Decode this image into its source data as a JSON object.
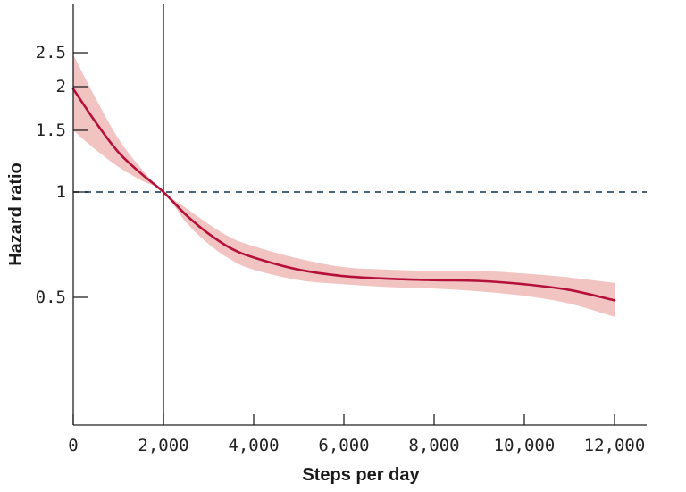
{
  "chart_data": {
    "type": "line",
    "title": "",
    "xlabel": "Steps per day",
    "ylabel": "Hazard ratio",
    "y_scale": "log",
    "xlim": [
      0,
      12600
    ],
    "ylim": [
      0.24,
      3.6
    ],
    "x_ticks": [
      0,
      2000,
      4000,
      6000,
      8000,
      10000,
      12000
    ],
    "x_tick_labels": [
      "0",
      "2,000",
      "4,000",
      "6,000",
      "8,000",
      "10,000",
      "12,000"
    ],
    "y_ticks": [
      0.5,
      1,
      1.5,
      2,
      2.5
    ],
    "y_tick_labels": [
      "0.5",
      "1",
      "1.5",
      "2",
      "2.5"
    ],
    "reference_lines": [
      {
        "axis": "y",
        "value": 1,
        "style": "dashed",
        "color": "#4a6478"
      },
      {
        "axis": "x",
        "value": 2000,
        "style": "solid",
        "color": "#1a1a1a"
      }
    ],
    "series": [
      {
        "x": [
          0,
          500,
          1000,
          1500,
          2000,
          2500,
          3000,
          3500,
          4000,
          5000,
          6000,
          7000,
          8000,
          9000,
          10000,
          11000,
          12000
        ],
        "y": [
          1.97,
          1.58,
          1.3,
          1.13,
          1.0,
          0.86,
          0.76,
          0.69,
          0.65,
          0.6,
          0.575,
          0.565,
          0.56,
          0.557,
          0.545,
          0.525,
          0.49
        ],
        "lower": [
          1.5,
          1.32,
          1.18,
          1.08,
          1.0,
          0.82,
          0.71,
          0.64,
          0.6,
          0.56,
          0.545,
          0.535,
          0.53,
          0.52,
          0.505,
          0.48,
          0.44
        ],
        "upper": [
          2.47,
          1.85,
          1.42,
          1.17,
          1.0,
          0.9,
          0.81,
          0.74,
          0.7,
          0.645,
          0.61,
          0.6,
          0.595,
          0.595,
          0.585,
          0.57,
          0.55
        ],
        "color": "#b5103a",
        "band_color": "#f1c4c2"
      }
    ],
    "grid": false
  }
}
